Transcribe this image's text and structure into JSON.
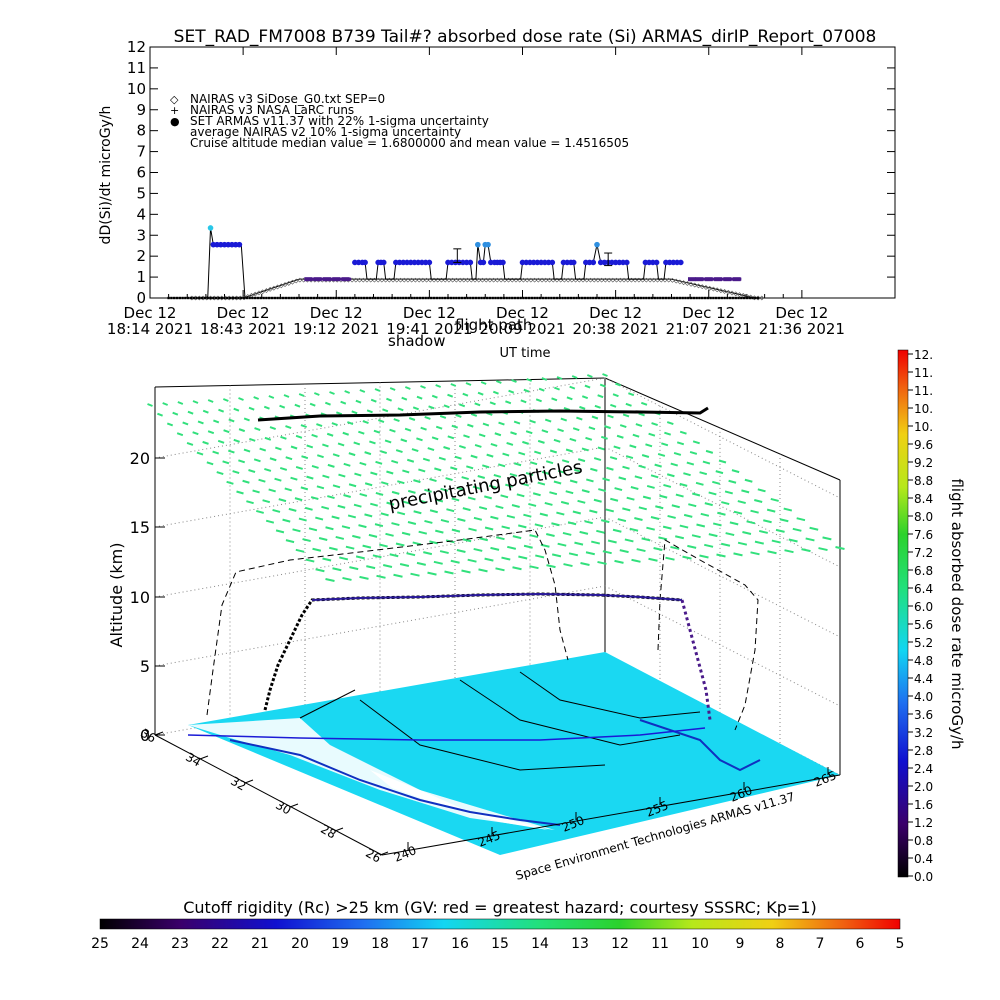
{
  "title": "SET_RAD_FM7008  B739 Tail#? absorbed dose rate (Si) ARMAS_dirIP_Report_07008",
  "colors": {
    "armas": "#1a1ad6",
    "armas_high": "#2f8fe0",
    "armas_first": "#29c7e8",
    "sigma": "#4a1a8a",
    "nairas": "#000000",
    "ground": "#1ad8f2",
    "precip": "#32e07c"
  },
  "chart_data": [
    {
      "type": "scatter",
      "ylabel": "dD(Si)/dt microGy/h",
      "xlabel": "UT time",
      "xlim": [
        0,
        8
      ],
      "ylim": [
        0,
        12
      ],
      "yticks": [
        "0",
        "1",
        "2",
        "3",
        "4",
        "5",
        "6",
        "7",
        "8",
        "9",
        "10",
        "11",
        "12"
      ],
      "xticks": [
        {
          "day": "Dec 12",
          "time": "18:14 2021"
        },
        {
          "day": "Dec 12",
          "time": "18:43 2021"
        },
        {
          "day": "Dec 12",
          "time": "19:12 2021"
        },
        {
          "day": "Dec 12",
          "time": "19:41 2021"
        },
        {
          "day": "Dec 12",
          "time": "20:09 2021"
        },
        {
          "day": "Dec 12",
          "time": "20:38 2021"
        },
        {
          "day": "Dec 12",
          "time": "21:07 2021"
        },
        {
          "day": "Dec 12",
          "time": "21:36 2021"
        }
      ],
      "legend": [
        {
          "symbol": "◇",
          "text": "NAIRAS v3 SiDose_G0.txt SEP=0"
        },
        {
          "symbol": "+",
          "text": "NAIRAS v3 NASA LaRC runs"
        },
        {
          "symbol": "●",
          "text": "SET ARMAS v11.37 with 22% 1-sigma uncertainty"
        },
        {
          "symbol": "",
          "text": "average NAIRAS v2 10% 1-sigma uncertainty"
        },
        {
          "symbol": "",
          "text": "Cruise altitude median value = 1.6800000 and mean value = 1.4516505"
        }
      ],
      "annotations": [
        "shadow",
        "flight path"
      ],
      "series": [
        {
          "name": "SET ARMAS v11.37 with 22% 1-sigma uncertainty",
          "points": [
            [
              0.65,
              3.35
            ],
            [
              0.68,
              2.55
            ],
            [
              0.72,
              2.55
            ],
            [
              0.76,
              2.55
            ],
            [
              0.8,
              2.55
            ],
            [
              0.84,
              2.55
            ],
            [
              0.88,
              2.55
            ],
            [
              0.92,
              2.55
            ],
            [
              0.96,
              2.55
            ],
            [
              2.2,
              1.7
            ],
            [
              2.24,
              1.7
            ],
            [
              2.28,
              1.7
            ],
            [
              2.31,
              1.7
            ],
            [
              2.45,
              1.7
            ],
            [
              2.48,
              1.7
            ],
            [
              2.51,
              1.7
            ],
            [
              2.64,
              1.7
            ],
            [
              2.68,
              1.7
            ],
            [
              2.72,
              1.7
            ],
            [
              2.76,
              1.7
            ],
            [
              2.8,
              1.7
            ],
            [
              2.84,
              1.7
            ],
            [
              2.88,
              1.7
            ],
            [
              2.92,
              1.7
            ],
            [
              2.96,
              1.7
            ],
            [
              3.0,
              1.7
            ],
            [
              3.2,
              1.7
            ],
            [
              3.24,
              1.7
            ],
            [
              3.28,
              1.7
            ],
            [
              3.32,
              1.7
            ],
            [
              3.36,
              1.7
            ],
            [
              3.4,
              1.7
            ],
            [
              3.44,
              1.7
            ],
            [
              3.52,
              2.55
            ],
            [
              3.55,
              1.7
            ],
            [
              3.58,
              1.7
            ],
            [
              3.6,
              2.55
            ],
            [
              3.63,
              2.55
            ],
            [
              3.66,
              1.7
            ],
            [
              3.7,
              1.7
            ],
            [
              3.73,
              1.7
            ],
            [
              3.76,
              1.7
            ],
            [
              3.79,
              1.7
            ],
            [
              4.0,
              1.7
            ],
            [
              4.04,
              1.7
            ],
            [
              4.08,
              1.7
            ],
            [
              4.12,
              1.7
            ],
            [
              4.16,
              1.7
            ],
            [
              4.2,
              1.7
            ],
            [
              4.24,
              1.7
            ],
            [
              4.28,
              1.7
            ],
            [
              4.32,
              1.7
            ],
            [
              4.44,
              1.7
            ],
            [
              4.48,
              1.7
            ],
            [
              4.52,
              1.7
            ],
            [
              4.55,
              1.7
            ],
            [
              4.68,
              1.7
            ],
            [
              4.72,
              1.7
            ],
            [
              4.76,
              1.7
            ],
            [
              4.8,
              2.55
            ],
            [
              4.84,
              1.7
            ],
            [
              4.88,
              1.7
            ],
            [
              4.92,
              1.7
            ],
            [
              4.96,
              1.7
            ],
            [
              5.0,
              1.7
            ],
            [
              5.04,
              1.7
            ],
            [
              5.08,
              1.7
            ],
            [
              5.12,
              1.7
            ],
            [
              5.32,
              1.7
            ],
            [
              5.36,
              1.7
            ],
            [
              5.4,
              1.7
            ],
            [
              5.44,
              1.7
            ],
            [
              5.54,
              1.7
            ],
            [
              5.58,
              1.7
            ],
            [
              5.62,
              1.7
            ],
            [
              5.66,
              1.7
            ],
            [
              5.7,
              1.7
            ]
          ]
        },
        {
          "name": "average NAIRAS v2 10% 1-sigma uncertainty",
          "points": [
            [
              1.7,
              0.9
            ],
            [
              1.8,
              0.9
            ],
            [
              1.9,
              0.9
            ],
            [
              2.0,
              0.9
            ],
            [
              2.1,
              0.9
            ],
            [
              5.82,
              0.9
            ],
            [
              5.9,
              0.9
            ],
            [
              6.0,
              0.9
            ],
            [
              6.1,
              0.9
            ],
            [
              6.2,
              0.9
            ],
            [
              6.3,
              0.9
            ]
          ]
        }
      ],
      "error_bars": [
        [
          3.3,
          1.7,
          2.35
        ],
        [
          4.92,
          1.55,
          2.15
        ]
      ]
    },
    {
      "type": "scatter",
      "ylabel": "Altitude (km)",
      "zticks": [
        "0",
        "5",
        "10",
        "15",
        "20"
      ],
      "lat_ticks": [
        "36",
        "34",
        "32",
        "30",
        "28",
        "26"
      ],
      "lon_ticks": [
        "240",
        "245",
        "250",
        "255",
        "260",
        "265"
      ],
      "annotations": [
        "precipitating particles"
      ],
      "credit": "Space Environment Technologies ARMAS v11.37",
      "colorbar_label": "flight absorbed dose rate microGy/h",
      "colorbar_ticks": [
        "12.",
        "11.",
        "11.",
        "10.",
        "10.",
        "9.6",
        "9.2",
        "8.8",
        "8.4",
        "8.0",
        "7.6",
        "7.2",
        "6.8",
        "6.4",
        "6.0",
        "5.6",
        "5.2",
        "4.8",
        "4.4",
        "4.0",
        "3.6",
        "3.2",
        "2.8",
        "2.4",
        "2.0",
        "1.6",
        "1.2",
        "0.8",
        "0.4",
        "0.0"
      ]
    },
    {
      "type": "heatmap",
      "title": "Cutoff rigidity (Rc) >25 km (GV: red = greatest hazard; courtesy SSSRC; Kp=1)",
      "ticks": [
        "25",
        "24",
        "23",
        "22",
        "21",
        "20",
        "19",
        "18",
        "17",
        "16",
        "15",
        "14",
        "13",
        "12",
        "11",
        "10",
        "9",
        "8",
        "7",
        "6",
        "5"
      ]
    }
  ]
}
